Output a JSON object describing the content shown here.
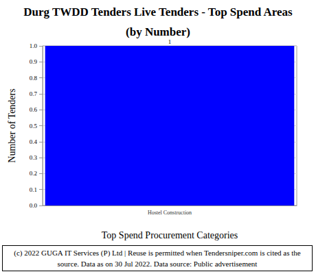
{
  "chart_data": {
    "type": "bar",
    "title": "Durg TWDD Tenders Live Tenders - Top Spend Areas",
    "subtitle": "(by Number)",
    "x_label": "Top Spend Procurement Categories",
    "y_label": "Number of Tenders",
    "categories": [
      "Hostel Construction"
    ],
    "values": [
      1
    ],
    "color": "#0000ff",
    "ylim": [
      0,
      1
    ],
    "yticks": [
      {
        "value": 0,
        "label": "0.0"
      },
      0.1,
      0.2,
      0.3,
      0.4,
      0.5,
      0.6,
      0.7,
      0.8,
      0.9,
      {
        "value": 1,
        "label": "1.0"
      }
    ],
    "grid": true,
    "data_labels": true,
    "annotation": "(c) 2022 GUGA IT Services (P) Ltd | Reuse is permitted when Tendersniper.com is cited as the source. Data as on 30 Jul 2022. Data source: Public advertisement"
  }
}
